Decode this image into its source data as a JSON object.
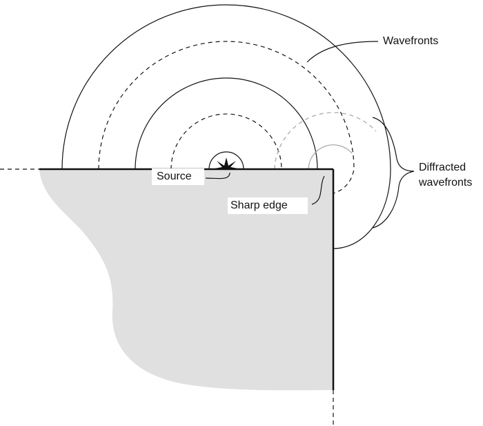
{
  "labels": {
    "wavefronts": "Wavefronts",
    "diffracted": [
      "Diffracted",
      "wavefronts"
    ],
    "source": "Source",
    "sharp_edge": "Sharp edge"
  }
}
